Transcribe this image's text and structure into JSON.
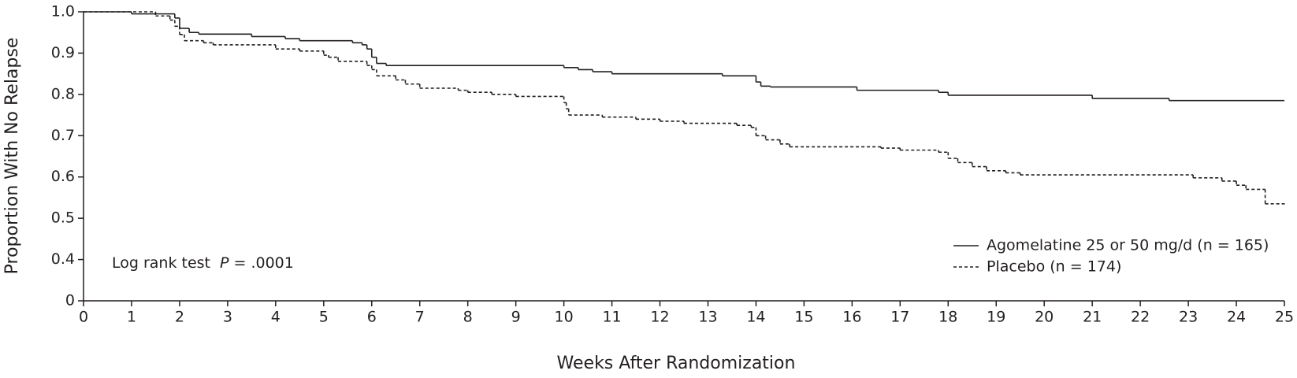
{
  "chart_data": {
    "type": "line",
    "step": "post",
    "xlabel": "Weeks After Randomization",
    "ylabel": "Proportion With No Relapse",
    "annotation": {
      "text": "Log rank test",
      "stat": "P",
      "result": "= .0001"
    },
    "xlim": [
      0,
      25
    ],
    "xticks": [
      0,
      1,
      2,
      3,
      4,
      5,
      6,
      7,
      8,
      9,
      10,
      11,
      12,
      13,
      14,
      15,
      16,
      17,
      18,
      19,
      20,
      21,
      22,
      23,
      24,
      25
    ],
    "ylim": [
      0.3,
      1.0
    ],
    "yticks": [
      {
        "value": 0.3,
        "label": "0"
      },
      0.4,
      0.5,
      0.6,
      0.7,
      0.8,
      0.9,
      {
        "value": 1.0,
        "label": "1.0"
      }
    ],
    "legend": "lower right",
    "series": [
      {
        "name": "Agomelatine 25 or 50 mg/d (n = 165)",
        "color": "#231f20",
        "linestyle": "solid",
        "x": [
          0,
          1.0,
          1.9,
          2.0,
          2.2,
          2.4,
          3.5,
          4.2,
          4.5,
          5.6,
          5.8,
          5.9,
          6.0,
          6.1,
          6.3,
          10.0,
          10.3,
          10.6,
          11.0,
          13.3,
          14.0,
          14.1,
          14.3,
          16.1,
          17.8,
          18.0,
          21.0,
          22.6,
          25
        ],
        "values": [
          1.0,
          0.995,
          0.985,
          0.96,
          0.95,
          0.946,
          0.94,
          0.935,
          0.93,
          0.925,
          0.92,
          0.91,
          0.89,
          0.875,
          0.87,
          0.865,
          0.86,
          0.855,
          0.85,
          0.845,
          0.83,
          0.82,
          0.818,
          0.81,
          0.805,
          0.798,
          0.79,
          0.785,
          0.785
        ]
      },
      {
        "name": "Placebo (n = 174)",
        "color": "#231f20",
        "linestyle": "dashed",
        "x": [
          0,
          1.5,
          1.8,
          1.9,
          2.0,
          2.1,
          2.5,
          2.7,
          4.0,
          4.5,
          5.0,
          5.1,
          5.3,
          5.9,
          6.0,
          6.1,
          6.5,
          6.7,
          7.0,
          7.8,
          8.0,
          8.5,
          9.0,
          10.0,
          10.05,
          10.1,
          10.8,
          11.5,
          12.0,
          12.5,
          13.6,
          13.9,
          14.0,
          14.2,
          14.5,
          14.7,
          16.6,
          17.0,
          17.8,
          18.0,
          18.2,
          18.5,
          18.8,
          19.2,
          19.5,
          23.1,
          23.7,
          24.0,
          24.2,
          24.6,
          25
        ],
        "values": [
          1.0,
          0.99,
          0.98,
          0.965,
          0.945,
          0.93,
          0.925,
          0.92,
          0.91,
          0.905,
          0.895,
          0.89,
          0.88,
          0.87,
          0.86,
          0.845,
          0.835,
          0.825,
          0.815,
          0.81,
          0.805,
          0.8,
          0.795,
          0.78,
          0.765,
          0.75,
          0.745,
          0.74,
          0.735,
          0.73,
          0.725,
          0.72,
          0.7,
          0.69,
          0.68,
          0.673,
          0.67,
          0.665,
          0.66,
          0.645,
          0.635,
          0.625,
          0.615,
          0.61,
          0.605,
          0.598,
          0.59,
          0.58,
          0.57,
          0.535,
          0.535
        ]
      }
    ]
  }
}
